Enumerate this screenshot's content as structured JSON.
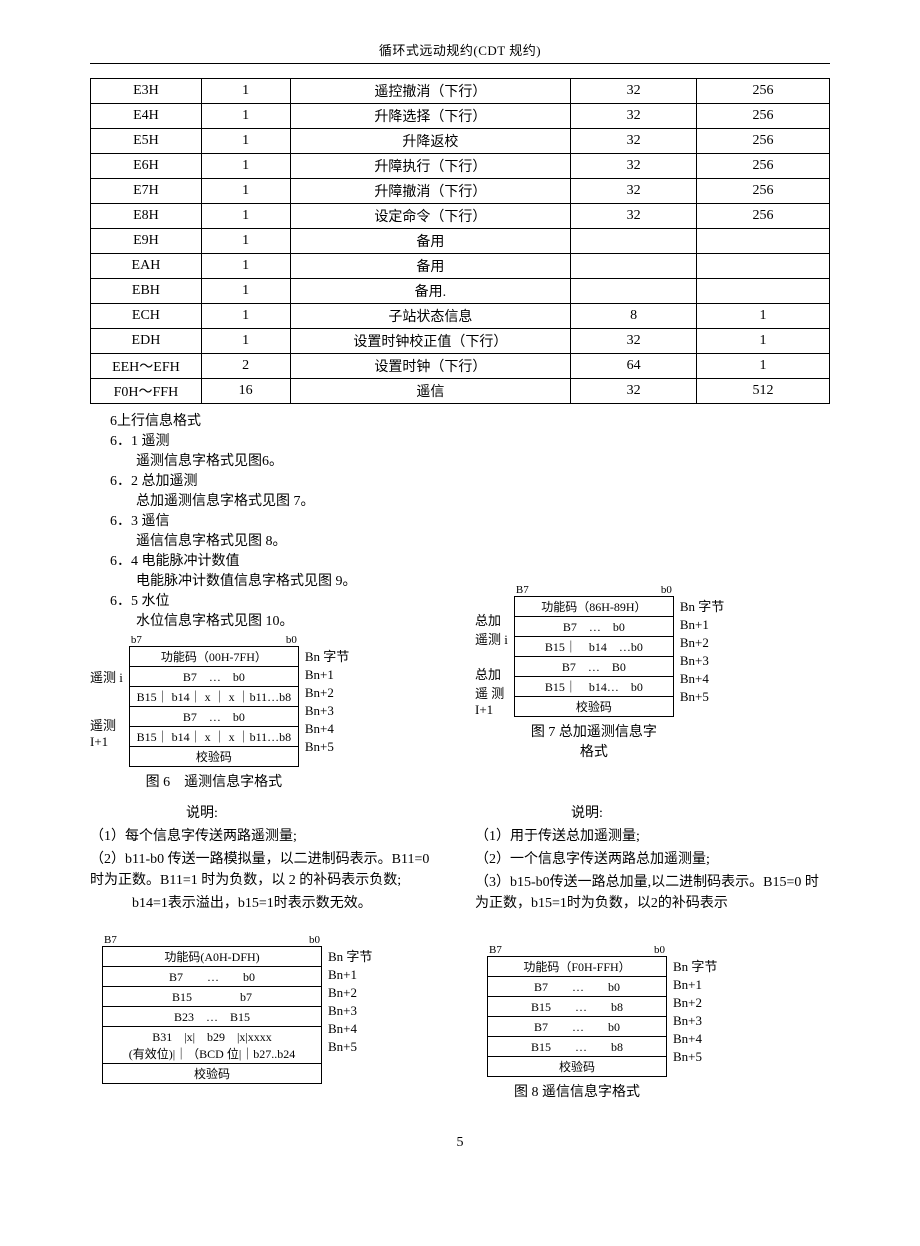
{
  "header": {
    "title": "循环式远动规约(CDT 规约)"
  },
  "main_table": {
    "col_widths": [
      "15%",
      "12%",
      "38%",
      "17%",
      "18%"
    ],
    "rows": [
      [
        "E3H",
        "1",
        "遥控撤消（下行）",
        "32",
        "256"
      ],
      [
        "E4H",
        "1",
        "升降选择（下行）",
        "32",
        "256"
      ],
      [
        "E5H",
        "1",
        "升降返校",
        "32",
        "256"
      ],
      [
        "E6H",
        "1",
        "升障执行（下行）",
        "32",
        "256"
      ],
      [
        "E7H",
        "1",
        "升障撤消（下行）",
        "32",
        "256"
      ],
      [
        "E8H",
        "1",
        "设定命令（下行）",
        "32",
        "256"
      ],
      [
        "E9H",
        "1",
        "备用",
        "",
        ""
      ],
      [
        "EAH",
        "1",
        "备用",
        "",
        ""
      ],
      [
        "EBH",
        "1",
        "备用.",
        "",
        ""
      ],
      [
        "ECH",
        "1",
        "子站状态信息",
        "8",
        "1"
      ],
      [
        "EDH",
        "1",
        "设置时钟校正值（下行）",
        "32",
        "1"
      ],
      [
        "EEH～EFH",
        "2",
        "设置时钟（下行）",
        "64",
        "1"
      ],
      [
        "F0H～FFH",
        "16",
        "遥信",
        "32",
        "512"
      ]
    ]
  },
  "toc": {
    "heading": "6上行信息格式",
    "items": [
      {
        "h": "6．1 遥测",
        "body": "遥测信息字格式见图6。"
      },
      {
        "h": "6．2 总加遥测",
        "body": "总加遥测信息字格式见图 7。"
      },
      {
        "h": "6．3 遥信",
        "body": "遥信信息字格式见图 8。"
      },
      {
        "h": "6．4 电能脉冲计数值",
        "body": "电能脉冲计数值信息字格式见图 9。"
      },
      {
        "h": "6．5 水位",
        "body": "水位信息字格式见图 10。"
      }
    ]
  },
  "fig6": {
    "bit_hi": "b7",
    "bit_lo": "b0",
    "side_top": "遥测 i",
    "side_bot": "遥测\nI+1",
    "rows": [
      "功能码（00H-7FH）",
      "B7　…　b0",
      "B15｜ b14｜ x ｜ x ｜b11…b8",
      "B7　…　b0",
      "B15｜ b14｜ x ｜ x ｜b11…b8",
      "校验码"
    ],
    "bn": [
      "Bn 字节",
      "Bn+1",
      "Bn+2",
      "Bn+3",
      "Bn+4",
      "Bn+5"
    ],
    "caption": "图 6　遥测信息字格式",
    "notes_title": "说明:",
    "notes": [
      "（1）每个信息字传送两路遥测量;",
      "（2）b11-b0 传送一路模拟量，以二进制码表示。B11=0 时为正数。B11=1 时为负数，以 2 的补码表示负数;",
      "b14=1表示溢出，b15=1时表示数无效。"
    ]
  },
  "fig7": {
    "bit_hi": "B7",
    "bit_lo": "b0",
    "side_top": "总加\n遥测 i",
    "side_bot": "总加\n遥 测\nI+1",
    "rows": [
      "功能码（86H-89H）",
      "B7　…　b0",
      "B15｜　b14　…b0",
      "B7　…　B0",
      "B15｜　b14…　b0",
      "校验码"
    ],
    "bn": [
      "Bn 字节",
      "Bn+1",
      "Bn+2",
      "Bn+3",
      "Bn+4",
      "Bn+5"
    ],
    "caption": "图 7 总加遥测信息字\n格式",
    "notes_title": "说明:",
    "notes": [
      "（1）用于传送总加遥测量;",
      "（2）一个信息字传送两路总加遥测量;",
      "（3）b15-b0传送一路总加量,以二进制码表示。B15=0 时为正数，b15=1时为负数，以2的补码表示"
    ]
  },
  "fig9": {
    "bit_hi": "B7",
    "bit_lo": "b0",
    "rows": [
      "功能码(A0H-DFH)",
      "B7　　…　　b0",
      "B15　　　　b7",
      "B23　…　B15",
      "B31　|x|　b29　|x|xxxx",
      "(有效位)|｜（BCD 位|｜b27..b24",
      "校验码"
    ],
    "bn": [
      "Bn 字节",
      "Bn+1",
      "Bn+2",
      "Bn+3",
      "Bn+4",
      "Bn+5"
    ]
  },
  "fig8": {
    "bit_hi": "B7",
    "bit_lo": "b0",
    "rows": [
      "功能码（F0H-FFH）",
      "B7　　…　　b0",
      "B15　　…　　b8",
      "B7　　…　　b0",
      "B15　　…　　b8",
      "校验码"
    ],
    "bn": [
      "Bn 字节",
      "Bn+1",
      "Bn+2",
      "Bn+3",
      "Bn+4",
      "Bn+5"
    ],
    "caption": "图 8 遥信信息字格式"
  },
  "page_number": "5",
  "colors": {
    "text": "#000000",
    "bg": "#ffffff"
  }
}
